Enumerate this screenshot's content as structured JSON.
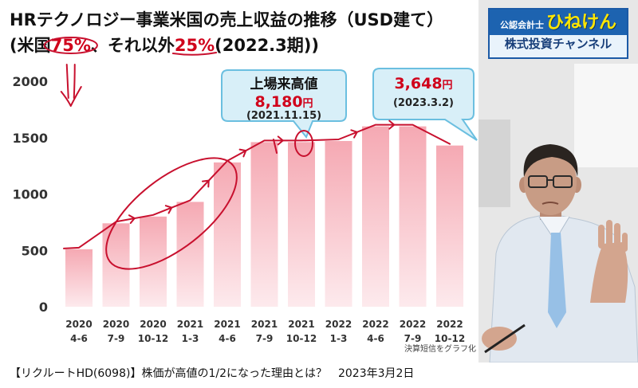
{
  "chart_data": {
    "type": "bar",
    "title": "HRテクノロジー事業米国の売上収益の推移（USD建て）",
    "subtitle": {
      "part1": "(米国",
      "us_share": "75%",
      "part2": "、それ以外",
      "other_share": "25%",
      "part3": "(2022.3期))"
    },
    "categories": [
      "2020 4-6",
      "2020 7-9",
      "2020 10-12",
      "2021 1-3",
      "2021 4-6",
      "2021 7-9",
      "2021 10-12",
      "2022 1-3",
      "2022 4-6",
      "2022 7-9",
      "2022 10-12"
    ],
    "values": [
      510,
      740,
      800,
      930,
      1280,
      1460,
      1460,
      1470,
      1600,
      1600,
      1430
    ],
    "ylim": [
      0,
      2000
    ],
    "yticks": [
      0,
      500,
      1000,
      1500,
      2000
    ],
    "grid": false,
    "note": "決算短信をグラフ化"
  },
  "callouts": {
    "all_time_high": {
      "label": "上場来高値",
      "price": "8,180",
      "unit": "円",
      "date": "(2021.11.15)"
    },
    "current": {
      "price": "3,648",
      "unit": "円",
      "date": "(2023.3.2)"
    }
  },
  "channel": {
    "prefix": "公認会計士",
    "name": "ひねけん",
    "subtitle": "株式投資チャンネル"
  },
  "caption": "【リクルートHD(6098)】株価が高値の1/2になった理由とは？　2023年3月2日",
  "colors": {
    "accent_red": "#d0021b",
    "annotation_red": "#c8102e",
    "bar_top": "#f5a9b3",
    "bar_bottom": "#fdeaed",
    "callout_fill": "#d8eff8",
    "callout_border": "#6bbfe0",
    "banner_blue": "#1d63b0",
    "banner_name_yellow": "#ffe600"
  }
}
